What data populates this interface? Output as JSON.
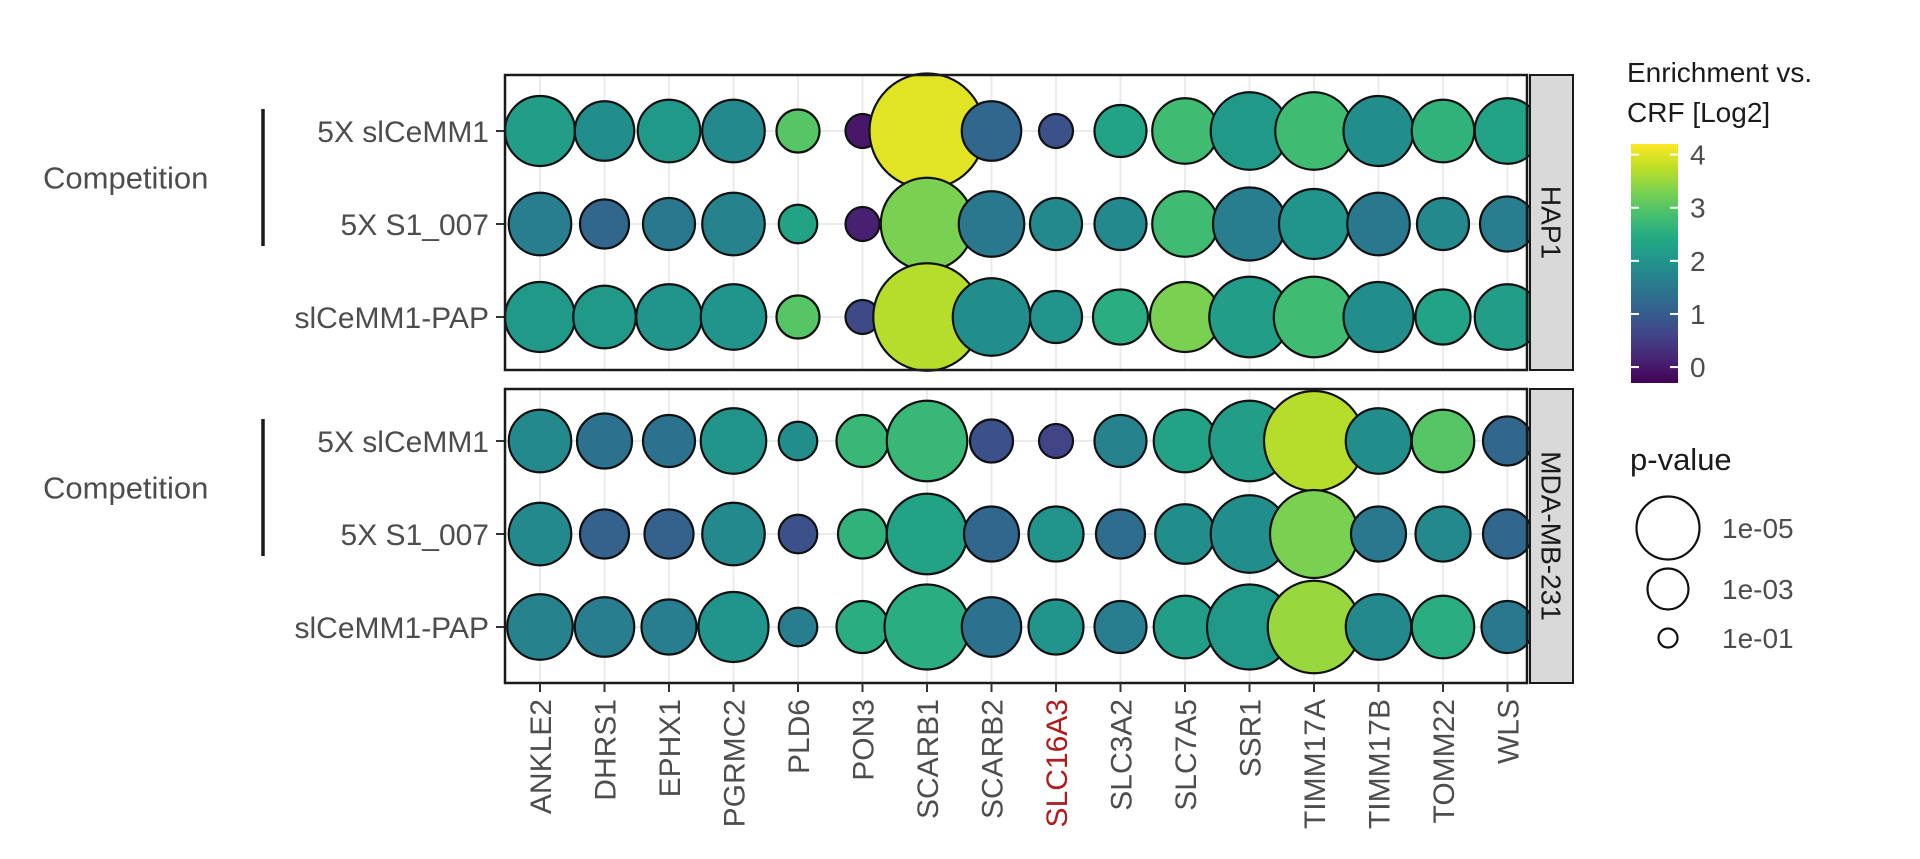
{
  "chart_data": {
    "type": "scatter",
    "subtype": "dot-plot",
    "x_categories": [
      "ANKLE2",
      "DHRS1",
      "EPHX1",
      "PGRMC2",
      "PLD6",
      "PON3",
      "SCARB1",
      "SCARB2",
      "SLC16A3",
      "SLC3A2",
      "SLC7A5",
      "SSR1",
      "TIMM17A",
      "TIMM17B",
      "TOMM22",
      "WLS"
    ],
    "highlighted_category": "SLC16A3",
    "highlight_color": "#b01c1c",
    "row_group_label": "Competition",
    "panels": [
      {
        "name": "HAP1",
        "rows": [
          "5X slCeMM1",
          "5X S1_007",
          "slCeMM1-PAP"
        ],
        "bracketed_rows": [
          "5X slCeMM1",
          "5X S1_007"
        ],
        "enrichment_log2": [
          [
            2.2,
            1.9,
            2.1,
            1.8,
            3.0,
            0.0,
            4.0,
            1.2,
            0.8,
            2.3,
            2.8,
            2.1,
            2.8,
            1.9,
            2.6,
            2.3
          ],
          [
            1.6,
            1.2,
            1.5,
            1.7,
            2.3,
            0.1,
            3.3,
            1.5,
            1.8,
            1.8,
            2.8,
            1.6,
            2.0,
            1.5,
            1.8,
            1.6
          ],
          [
            2.1,
            2.1,
            2.0,
            2.0,
            3.0,
            0.7,
            3.7,
            1.9,
            2.0,
            2.5,
            3.3,
            2.2,
            2.8,
            1.9,
            2.3,
            2.2
          ]
        ],
        "neg_log10_p": [
          [
            4.0,
            3.3,
            3.5,
            3.5,
            2.2,
            1.6,
            7.0,
            3.3,
            1.6,
            2.8,
            3.7,
            4.5,
            4.5,
            4.0,
            3.5,
            3.7
          ],
          [
            3.5,
            2.6,
            2.8,
            3.5,
            1.9,
            1.6,
            5.5,
            3.7,
            2.8,
            2.8,
            3.7,
            4.2,
            4.0,
            3.5,
            2.8,
            3.0
          ],
          [
            4.0,
            3.5,
            3.7,
            3.7,
            2.2,
            1.6,
            6.5,
            4.5,
            2.8,
            3.0,
            4.0,
            4.7,
            4.7,
            4.0,
            3.0,
            3.7
          ]
        ]
      },
      {
        "name": "MDA-MB-231",
        "rows": [
          "5X slCeMM1",
          "5X S1_007",
          "slCeMM1-PAP"
        ],
        "bracketed_rows": [
          "5X slCeMM1",
          "5X S1_007"
        ],
        "enrichment_log2": [
          [
            1.8,
            1.4,
            1.4,
            2.0,
            1.9,
            2.7,
            2.7,
            0.8,
            0.6,
            1.7,
            2.3,
            2.2,
            3.7,
            1.9,
            3.0,
            1.2
          ],
          [
            1.8,
            1.1,
            1.1,
            1.8,
            0.8,
            2.6,
            2.3,
            1.2,
            2.0,
            1.3,
            1.9,
            1.9,
            3.3,
            1.5,
            1.8,
            1.2
          ],
          [
            1.7,
            1.6,
            1.6,
            2.0,
            1.6,
            2.5,
            2.5,
            1.4,
            2.0,
            1.6,
            2.2,
            2.1,
            3.5,
            1.8,
            2.5,
            1.5
          ]
        ],
        "neg_log10_p": [
          [
            3.5,
            3.0,
            2.8,
            3.7,
            1.9,
            2.8,
            4.7,
            2.2,
            1.6,
            2.8,
            3.5,
            4.7,
            6.0,
            3.7,
            3.5,
            2.6
          ],
          [
            3.5,
            2.6,
            2.6,
            3.5,
            1.9,
            2.6,
            4.7,
            3.0,
            3.0,
            2.6,
            3.3,
            4.5,
            5.2,
            3.0,
            3.0,
            2.6
          ],
          [
            3.7,
            3.3,
            3.0,
            4.0,
            1.9,
            2.8,
            5.0,
            3.3,
            3.0,
            2.8,
            3.5,
            5.0,
            5.5,
            3.7,
            3.5,
            2.8
          ]
        ]
      }
    ],
    "color_legend": {
      "title_lines": [
        "Enrichment vs.",
        "CRF [Log2]"
      ],
      "colormap": "viridis",
      "range": [
        -0.3,
        4.2
      ],
      "ticks": [
        0,
        1,
        2,
        3,
        4
      ],
      "tick_labels": [
        "0",
        "1",
        "2",
        "3",
        "4"
      ]
    },
    "size_legend": {
      "title": "p-value",
      "entries": [
        {
          "label": "1e-05",
          "neg_log10_p": 5
        },
        {
          "label": "1e-03",
          "neg_log10_p": 3
        },
        {
          "label": "1e-01",
          "neg_log10_p": 1
        }
      ]
    },
    "grid": true
  }
}
